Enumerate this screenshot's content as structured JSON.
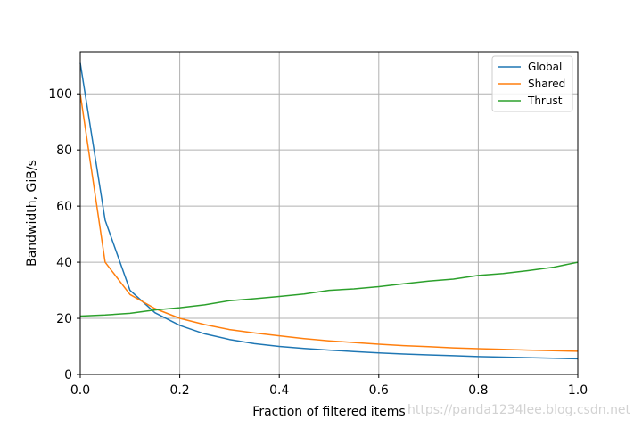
{
  "chart_data": {
    "type": "line",
    "xlabel": "Fraction of filtered items",
    "ylabel": "Bandwidth, GiB/s",
    "xlim": [
      0,
      1
    ],
    "ylim": [
      0,
      115
    ],
    "x_ticks": [
      "0.0",
      "0.2",
      "0.4",
      "0.6",
      "0.8",
      "1.0"
    ],
    "y_ticks": [
      "0",
      "20",
      "40",
      "60",
      "80",
      "100"
    ],
    "grid": true,
    "legend_position": "top-right",
    "x": [
      0,
      0.05,
      0.1,
      0.15,
      0.2,
      0.25,
      0.3,
      0.35,
      0.4,
      0.45,
      0.5,
      0.55,
      0.6,
      0.65,
      0.7,
      0.75,
      0.8,
      0.85,
      0.9,
      0.95,
      1.0
    ],
    "series": [
      {
        "name": "Global",
        "color": "#1f77b4",
        "values": [
          111,
          55,
          30,
          22,
          17.5,
          14.5,
          12.5,
          11,
          10,
          9.3,
          8.7,
          8.2,
          7.7,
          7.3,
          7.0,
          6.7,
          6.4,
          6.2,
          6.0,
          5.8,
          5.6
        ]
      },
      {
        "name": "Shared",
        "color": "#ff7f0e",
        "values": [
          100,
          40,
          28.5,
          23.5,
          20,
          17.8,
          16,
          14.8,
          13.8,
          12.8,
          12,
          11.4,
          10.8,
          10.3,
          9.9,
          9.5,
          9.2,
          9.0,
          8.7,
          8.5,
          8.3
        ]
      },
      {
        "name": "Thrust",
        "color": "#2ca02c",
        "values": [
          20.8,
          21.2,
          21.8,
          23,
          23.8,
          24.8,
          26.3,
          27,
          27.8,
          28.7,
          30,
          30.5,
          31.3,
          32.3,
          33.3,
          34,
          35.3,
          36,
          37,
          38.2,
          40
        ]
      }
    ]
  },
  "watermark": "https://panda1234lee.blog.csdn.net"
}
